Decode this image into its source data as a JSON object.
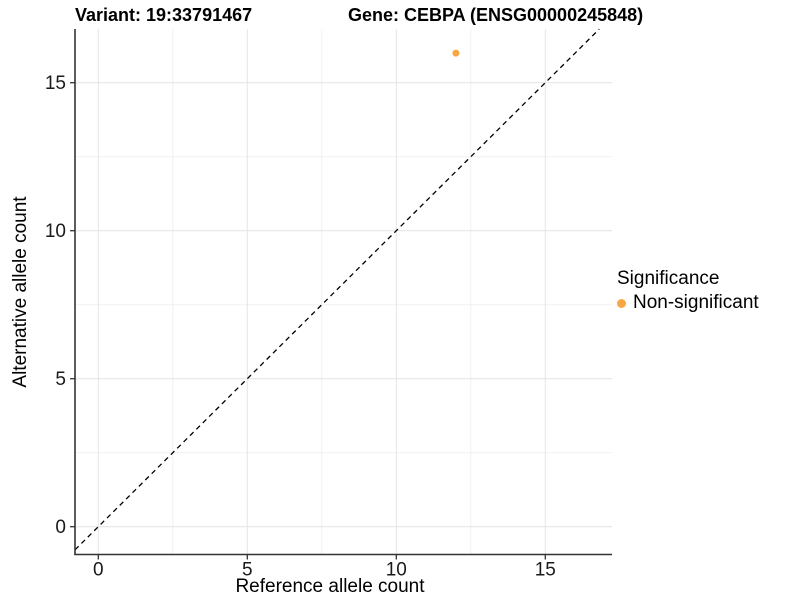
{
  "titles": {
    "variant": "Variant: 19:33791467",
    "gene": "Gene: CEBPA (ENSG00000245848)"
  },
  "chart_data": {
    "type": "scatter",
    "xlabel": "Reference allele count",
    "ylabel": "Alternative allele count",
    "xlim": [
      -0.78,
      17.24
    ],
    "ylim": [
      -0.93,
      16.81
    ],
    "x_ticks": [
      0,
      5,
      10,
      15
    ],
    "y_ticks": [
      0,
      5,
      10,
      15
    ],
    "x_minor_ticks": [
      2.5,
      7.5,
      12.5
    ],
    "y_minor_ticks": [
      2.5,
      7.5,
      12.5
    ],
    "grid": true,
    "identity_line": {
      "present": true,
      "style": "dashed",
      "color": "#000000"
    },
    "points": [
      {
        "x": 12,
        "y": 16,
        "significance": "Non-significant",
        "color": "#F9A743"
      }
    ],
    "legend": {
      "position": "right",
      "title": "Significance",
      "entries": [
        {
          "label": "Non-significant",
          "color": "#F9A743"
        }
      ]
    }
  },
  "colors": {
    "point_orange": "#F9A743",
    "axis_line": "#333333",
    "tick_label": "#1a1a1a",
    "grid_major": "#e4e4e4",
    "grid_minor": "#f1f1f1",
    "background": "#ffffff"
  }
}
